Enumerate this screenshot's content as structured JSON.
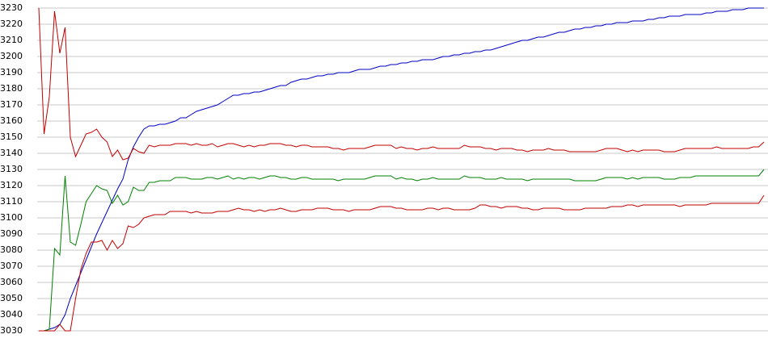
{
  "chart_data": {
    "type": "line",
    "ylim": [
      3030,
      3230
    ],
    "yticks": [
      3030,
      3040,
      3050,
      3060,
      3070,
      3080,
      3090,
      3100,
      3110,
      3120,
      3130,
      3140,
      3150,
      3160,
      3170,
      3180,
      3190,
      3200,
      3210,
      3220,
      3230
    ],
    "grid": true,
    "series": [
      {
        "color": "#0000c0",
        "values": [
          3030,
          3030,
          3031,
          3032,
          3034,
          3040,
          3050,
          3058,
          3066,
          3074,
          3082,
          3090,
          3097,
          3104,
          3111,
          3118,
          3124,
          3136,
          3144,
          3150,
          3155,
          3157,
          3157,
          3158,
          3158,
          3159,
          3160,
          3162,
          3162,
          3164,
          3166,
          3167,
          3168,
          3169,
          3170,
          3172,
          3174,
          3176,
          3176,
          3177,
          3177,
          3178,
          3178,
          3179,
          3180,
          3181,
          3182,
          3182,
          3184,
          3185,
          3186,
          3186,
          3187,
          3188,
          3188,
          3189,
          3189,
          3190,
          3190,
          3190,
          3191,
          3192,
          3192,
          3192,
          3193,
          3194,
          3194,
          3195,
          3195,
          3196,
          3196,
          3197,
          3197,
          3198,
          3198,
          3198,
          3199,
          3200,
          3200,
          3201,
          3201,
          3202,
          3202,
          3203,
          3203,
          3204,
          3204,
          3205,
          3206,
          3207,
          3208,
          3209,
          3210,
          3210,
          3211,
          3212,
          3212,
          3213,
          3214,
          3215,
          3215,
          3216,
          3217,
          3217,
          3218,
          3218,
          3219,
          3219,
          3220,
          3220,
          3221,
          3221,
          3221,
          3222,
          3222,
          3222,
          3223,
          3223,
          3224,
          3224,
          3225,
          3225,
          3225,
          3226,
          3226,
          3226,
          3226,
          3227,
          3227,
          3228,
          3228,
          3228,
          3229,
          3229,
          3229,
          3230,
          3230,
          3230,
          3230
        ]
      },
      {
        "color": "#c00000",
        "values": [
          3230,
          3152,
          3175,
          3228,
          3202,
          3218,
          3150,
          3138,
          3145,
          3152,
          3153,
          3155,
          3150,
          3147,
          3138,
          3142,
          3136,
          3137,
          3143,
          3141,
          3140,
          3145,
          3144,
          3145,
          3145,
          3145,
          3146,
          3146,
          3146,
          3145,
          3146,
          3145,
          3145,
          3146,
          3144,
          3145,
          3146,
          3146,
          3145,
          3144,
          3145,
          3144,
          3145,
          3145,
          3146,
          3146,
          3146,
          3145,
          3145,
          3144,
          3145,
          3145,
          3144,
          3144,
          3144,
          3144,
          3143,
          3143,
          3142,
          3143,
          3143,
          3143,
          3143,
          3144,
          3145,
          3145,
          3145,
          3145,
          3143,
          3144,
          3143,
          3143,
          3142,
          3143,
          3143,
          3144,
          3143,
          3143,
          3143,
          3143,
          3143,
          3145,
          3144,
          3144,
          3144,
          3143,
          3143,
          3142,
          3143,
          3143,
          3143,
          3142,
          3142,
          3141,
          3142,
          3142,
          3142,
          3143,
          3142,
          3142,
          3142,
          3141,
          3141,
          3141,
          3141,
          3141,
          3141,
          3142,
          3143,
          3143,
          3143,
          3142,
          3141,
          3142,
          3141,
          3142,
          3142,
          3142,
          3142,
          3141,
          3141,
          3141,
          3142,
          3143,
          3143,
          3143,
          3143,
          3143,
          3143,
          3144,
          3143,
          3143,
          3143,
          3143,
          3143,
          3143,
          3144,
          3144,
          3147
        ]
      },
      {
        "color": "#008000",
        "values": [
          3030,
          3030,
          3031,
          3081,
          3077,
          3126,
          3085,
          3083,
          3096,
          3110,
          3115,
          3120,
          3118,
          3117,
          3109,
          3114,
          3108,
          3110,
          3119,
          3117,
          3117,
          3122,
          3122,
          3123,
          3123,
          3123,
          3125,
          3125,
          3125,
          3124,
          3124,
          3124,
          3125,
          3125,
          3124,
          3125,
          3126,
          3124,
          3125,
          3124,
          3125,
          3125,
          3124,
          3125,
          3126,
          3126,
          3125,
          3125,
          3124,
          3124,
          3125,
          3125,
          3124,
          3124,
          3124,
          3124,
          3124,
          3123,
          3124,
          3124,
          3124,
          3124,
          3124,
          3125,
          3126,
          3126,
          3126,
          3126,
          3124,
          3125,
          3124,
          3124,
          3123,
          3124,
          3124,
          3125,
          3124,
          3124,
          3124,
          3124,
          3124,
          3126,
          3125,
          3125,
          3125,
          3124,
          3124,
          3124,
          3125,
          3124,
          3124,
          3124,
          3124,
          3123,
          3124,
          3124,
          3124,
          3124,
          3124,
          3124,
          3124,
          3124,
          3123,
          3123,
          3123,
          3123,
          3123,
          3124,
          3125,
          3125,
          3125,
          3125,
          3124,
          3125,
          3124,
          3125,
          3125,
          3125,
          3125,
          3124,
          3124,
          3124,
          3125,
          3125,
          3125,
          3126,
          3126,
          3126,
          3126,
          3126,
          3126,
          3126,
          3126,
          3126,
          3126,
          3126,
          3126,
          3126,
          3130
        ]
      },
      {
        "color": "#c00000",
        "values": [
          3030,
          3030,
          3030,
          3030,
          3034,
          3030,
          3030,
          3050,
          3068,
          3078,
          3085,
          3085,
          3086,
          3080,
          3086,
          3081,
          3084,
          3095,
          3094,
          3096,
          3100,
          3101,
          3102,
          3102,
          3102,
          3104,
          3104,
          3104,
          3104,
          3103,
          3104,
          3103,
          3103,
          3103,
          3104,
          3104,
          3104,
          3105,
          3106,
          3105,
          3105,
          3104,
          3105,
          3104,
          3105,
          3105,
          3106,
          3105,
          3104,
          3104,
          3105,
          3105,
          3105,
          3106,
          3106,
          3106,
          3105,
          3105,
          3105,
          3104,
          3105,
          3105,
          3105,
          3105,
          3106,
          3107,
          3107,
          3107,
          3106,
          3106,
          3105,
          3105,
          3105,
          3105,
          3106,
          3106,
          3105,
          3106,
          3106,
          3105,
          3105,
          3105,
          3105,
          3106,
          3108,
          3108,
          3107,
          3107,
          3106,
          3107,
          3107,
          3107,
          3106,
          3106,
          3105,
          3105,
          3106,
          3106,
          3106,
          3106,
          3105,
          3105,
          3105,
          3105,
          3106,
          3106,
          3106,
          3106,
          3106,
          3107,
          3107,
          3107,
          3108,
          3108,
          3107,
          3108,
          3108,
          3108,
          3108,
          3108,
          3108,
          3108,
          3107,
          3108,
          3108,
          3108,
          3108,
          3108,
          3109,
          3109,
          3109,
          3109,
          3109,
          3109,
          3109,
          3109,
          3109,
          3109,
          3114
        ]
      }
    ]
  }
}
